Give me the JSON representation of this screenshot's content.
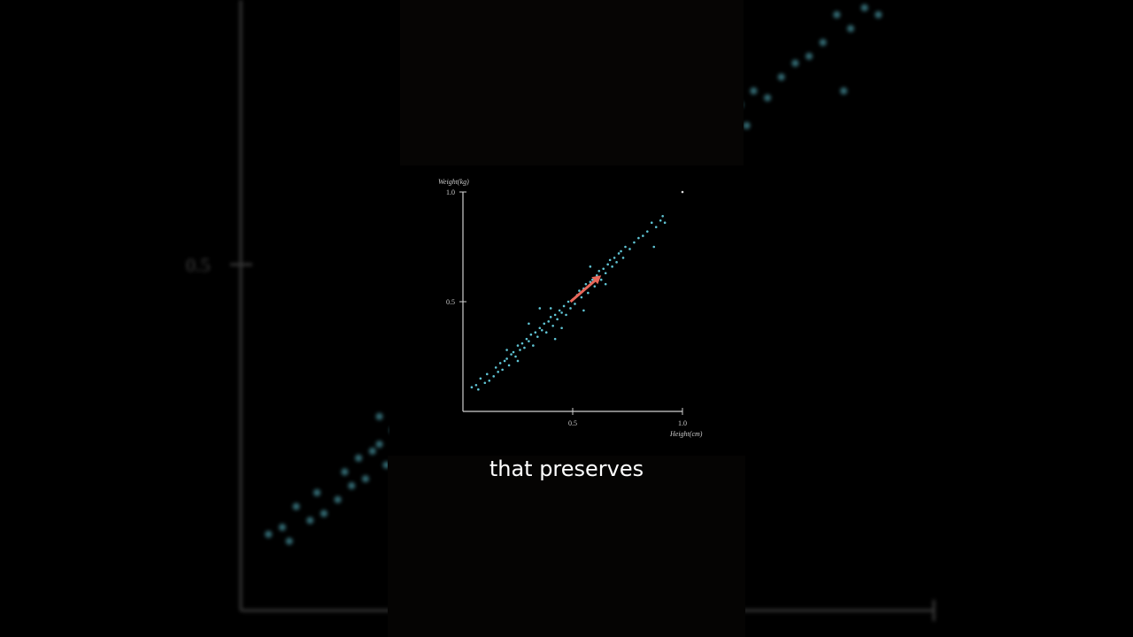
{
  "caption": "that preserves",
  "colors": {
    "points": "#5fc4d4",
    "arrow": "#e8675a",
    "axes": "#cfcfcf",
    "background": "#000000"
  },
  "chart_data": {
    "type": "scatter",
    "xlabel": "Height(cm)",
    "ylabel": "Weight(kg)",
    "xlim": [
      0,
      1.0
    ],
    "ylim": [
      0,
      1.0
    ],
    "xticks": [
      "0.5",
      "1.0"
    ],
    "yticks": [
      "0.5",
      "1.0"
    ],
    "grid": false,
    "points": [
      [
        0.04,
        0.11
      ],
      [
        0.06,
        0.12
      ],
      [
        0.07,
        0.1
      ],
      [
        0.08,
        0.15
      ],
      [
        0.1,
        0.13
      ],
      [
        0.11,
        0.17
      ],
      [
        0.12,
        0.14
      ],
      [
        0.14,
        0.16
      ],
      [
        0.15,
        0.2
      ],
      [
        0.16,
        0.18
      ],
      [
        0.17,
        0.22
      ],
      [
        0.18,
        0.19
      ],
      [
        0.19,
        0.23
      ],
      [
        0.2,
        0.24
      ],
      [
        0.21,
        0.21
      ],
      [
        0.22,
        0.26
      ],
      [
        0.23,
        0.27
      ],
      [
        0.24,
        0.25
      ],
      [
        0.25,
        0.3
      ],
      [
        0.26,
        0.28
      ],
      [
        0.27,
        0.31
      ],
      [
        0.28,
        0.29
      ],
      [
        0.29,
        0.33
      ],
      [
        0.3,
        0.32
      ],
      [
        0.31,
        0.35
      ],
      [
        0.32,
        0.3
      ],
      [
        0.33,
        0.36
      ],
      [
        0.34,
        0.34
      ],
      [
        0.35,
        0.38
      ],
      [
        0.36,
        0.37
      ],
      [
        0.37,
        0.4
      ],
      [
        0.38,
        0.36
      ],
      [
        0.39,
        0.41
      ],
      [
        0.4,
        0.43
      ],
      [
        0.41,
        0.39
      ],
      [
        0.42,
        0.44
      ],
      [
        0.43,
        0.42
      ],
      [
        0.44,
        0.46
      ],
      [
        0.45,
        0.45
      ],
      [
        0.46,
        0.48
      ],
      [
        0.47,
        0.44
      ],
      [
        0.48,
        0.5
      ],
      [
        0.49,
        0.47
      ],
      [
        0.5,
        0.51
      ],
      [
        0.51,
        0.49
      ],
      [
        0.52,
        0.53
      ],
      [
        0.53,
        0.55
      ],
      [
        0.54,
        0.52
      ],
      [
        0.55,
        0.56
      ],
      [
        0.56,
        0.58
      ],
      [
        0.57,
        0.54
      ],
      [
        0.58,
        0.59
      ],
      [
        0.59,
        0.6
      ],
      [
        0.6,
        0.57
      ],
      [
        0.61,
        0.62
      ],
      [
        0.62,
        0.64
      ],
      [
        0.63,
        0.6
      ],
      [
        0.64,
        0.65
      ],
      [
        0.65,
        0.63
      ],
      [
        0.66,
        0.67
      ],
      [
        0.67,
        0.69
      ],
      [
        0.68,
        0.66
      ],
      [
        0.69,
        0.7
      ],
      [
        0.7,
        0.68
      ],
      [
        0.71,
        0.72
      ],
      [
        0.72,
        0.73
      ],
      [
        0.73,
        0.7
      ],
      [
        0.74,
        0.75
      ],
      [
        0.76,
        0.74
      ],
      [
        0.78,
        0.77
      ],
      [
        0.8,
        0.79
      ],
      [
        0.82,
        0.8
      ],
      [
        0.84,
        0.82
      ],
      [
        0.86,
        0.86
      ],
      [
        0.88,
        0.84
      ],
      [
        0.9,
        0.87
      ],
      [
        0.91,
        0.89
      ],
      [
        0.92,
        0.86
      ],
      [
        0.87,
        0.75
      ],
      [
        0.35,
        0.47
      ],
      [
        0.42,
        0.33
      ],
      [
        0.3,
        0.4
      ],
      [
        0.55,
        0.46
      ],
      [
        0.25,
        0.23
      ],
      [
        0.45,
        0.38
      ],
      [
        0.58,
        0.66
      ],
      [
        0.2,
        0.28
      ],
      [
        0.65,
        0.58
      ],
      [
        1.0,
        1.0
      ],
      [
        0.4,
        0.47
      ]
    ],
    "arrow": {
      "from": [
        0.49,
        0.5
      ],
      "to": [
        0.63,
        0.62
      ]
    }
  }
}
